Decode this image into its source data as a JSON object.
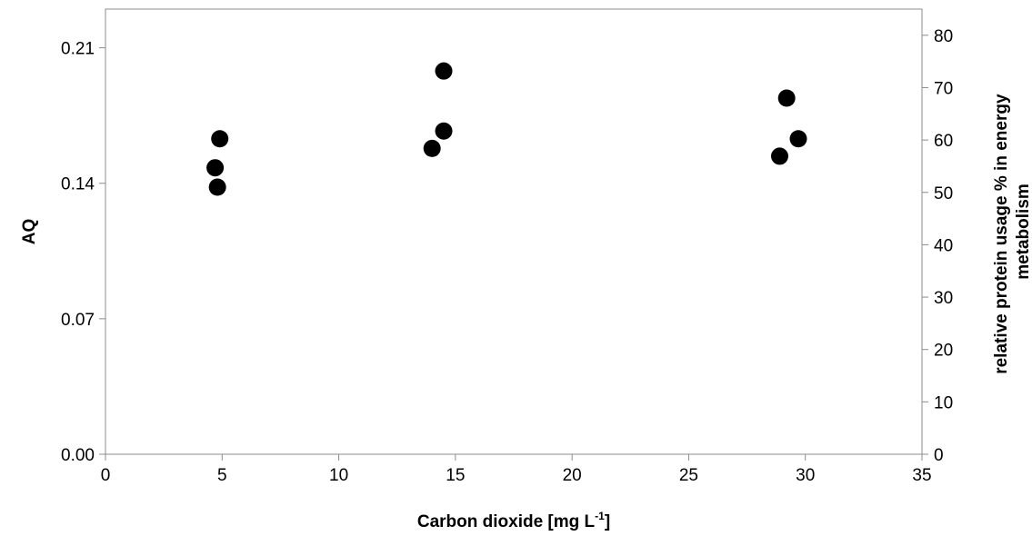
{
  "chart_data": {
    "type": "scatter",
    "title": "",
    "xlabel": "Carbon dioxide [mg L",
    "xlabel_superscript": "-1",
    "xlabel_suffix": "]",
    "ylabel": "AQ",
    "y2label_line1": "relative protein usage % in energy",
    "y2label_line2": "metabolism",
    "xlim": [
      0,
      35
    ],
    "ylim": [
      0,
      0.23
    ],
    "y2lim": [
      0,
      85
    ],
    "x_ticks": [
      "0",
      "5",
      "10",
      "15",
      "20",
      "25",
      "30",
      "35"
    ],
    "y_ticks": [
      "0.00",
      "0.07",
      "0.14",
      "0.21"
    ],
    "y2_ticks": [
      "0",
      "10",
      "20",
      "30",
      "40",
      "50",
      "60",
      "70",
      "80"
    ],
    "grid": false,
    "legend": "none",
    "marker_color": "#000000",
    "series": [
      {
        "axis": "left",
        "points": [
          {
            "x": 4.7,
            "y": 0.148
          },
          {
            "x": 4.8,
            "y": 0.138
          },
          {
            "x": 4.9,
            "y": 0.163
          },
          {
            "x": 14.0,
            "y": 0.158
          },
          {
            "x": 14.5,
            "y": 0.167
          },
          {
            "x": 14.5,
            "y": 0.198
          },
          {
            "x": 28.9,
            "y": 0.154
          },
          {
            "x": 29.2,
            "y": 0.184
          },
          {
            "x": 29.7,
            "y": 0.163
          }
        ]
      }
    ]
  }
}
